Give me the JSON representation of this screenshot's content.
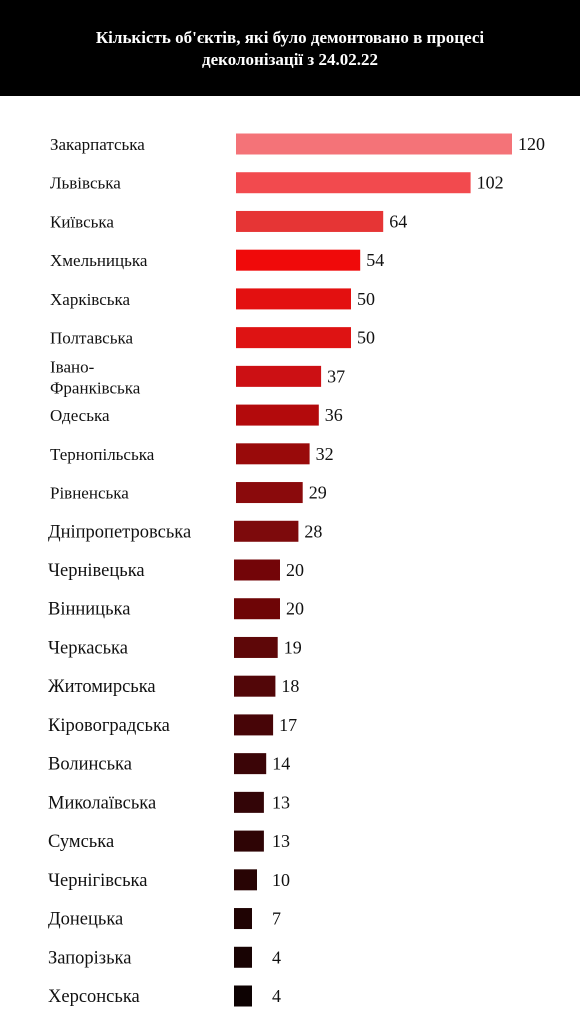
{
  "title": "Кількість об'єктів, які було демонтовано в процесі деколонізації з 24.02.22",
  "chart_data": {
    "type": "bar",
    "orientation": "horizontal",
    "title": "Кількість об'єктів, які було демонтовано в процесі деколонізації з 24.02.22",
    "categories": [
      "Закарпатська",
      "Львівська",
      "Київська",
      "Хмельницька",
      "Харківська",
      "Полтавська",
      "Івано-Франківська",
      "Одеська",
      "Тернопільська",
      "Рівненська",
      "Дніпропетровська",
      "Чернівецька",
      "Вінницька",
      "Черкаська",
      "Житомирська",
      "Кіровоградська",
      "Волинська",
      "Миколаївська",
      "Сумська",
      "Чернігівська",
      "Донецька",
      "Запорізька",
      "Херсонська"
    ],
    "values": [
      120,
      102,
      64,
      54,
      50,
      50,
      37,
      36,
      32,
      29,
      28,
      20,
      20,
      19,
      18,
      17,
      14,
      13,
      13,
      10,
      7,
      4,
      4
    ],
    "colors": [
      "#f47378",
      "#f24a4e",
      "#e63535",
      "#f00a0a",
      "#e31010",
      "#de1313",
      "#cc1014",
      "#b30a0c",
      "#990a0a",
      "#8a0a0c",
      "#7d0a0c",
      "#730508",
      "#6e0506",
      "#5e0708",
      "#520608",
      "#470507",
      "#3b0507",
      "#330507",
      "#2e0405",
      "#280404",
      "#1f0303",
      "#180303",
      "#0d0202"
    ]
  }
}
